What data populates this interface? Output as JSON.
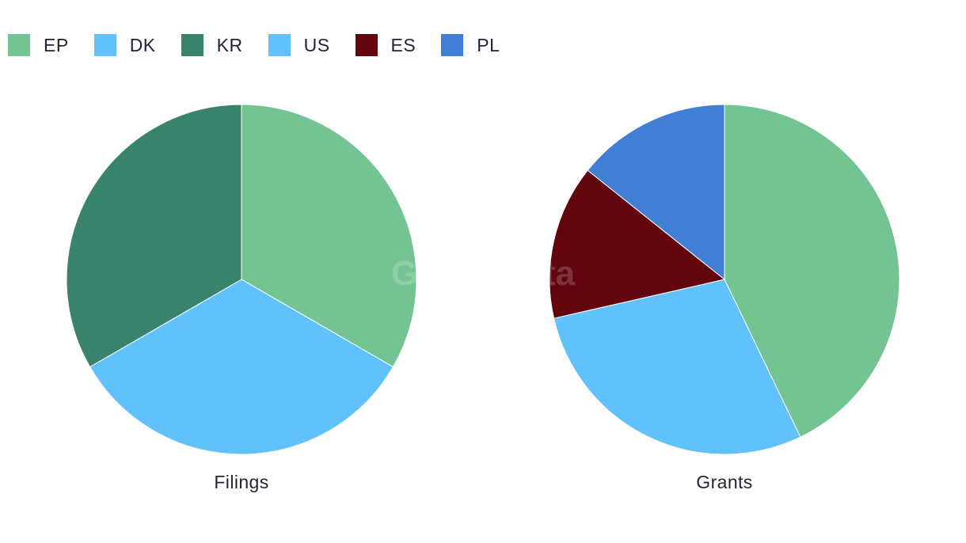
{
  "watermark": "GlobalData",
  "legend": [
    {
      "label": "EP",
      "color": "#74c393"
    },
    {
      "label": "DK",
      "color": "#61c1fa"
    },
    {
      "label": "KR",
      "color": "#39826c"
    },
    {
      "label": "US",
      "color": "#61c1fa"
    },
    {
      "label": "ES",
      "color": "#62050f"
    },
    {
      "label": "PL",
      "color": "#417fd6"
    }
  ],
  "chart_data": [
    {
      "type": "pie",
      "title": "Filings",
      "slices": [
        {
          "label": "EP",
          "value": 1,
          "color": "#74c393"
        },
        {
          "label": "US",
          "value": 1,
          "color": "#61c1fa"
        },
        {
          "label": "KR",
          "value": 1,
          "color": "#39826c"
        }
      ]
    },
    {
      "type": "pie",
      "title": "Grants",
      "slices": [
        {
          "label": "EP",
          "value": 3,
          "color": "#74c393"
        },
        {
          "label": "US",
          "value": 2,
          "color": "#61c1fa"
        },
        {
          "label": "ES",
          "value": 1,
          "color": "#62050f"
        },
        {
          "label": "PL",
          "value": 1,
          "color": "#417fd6"
        }
      ]
    }
  ]
}
